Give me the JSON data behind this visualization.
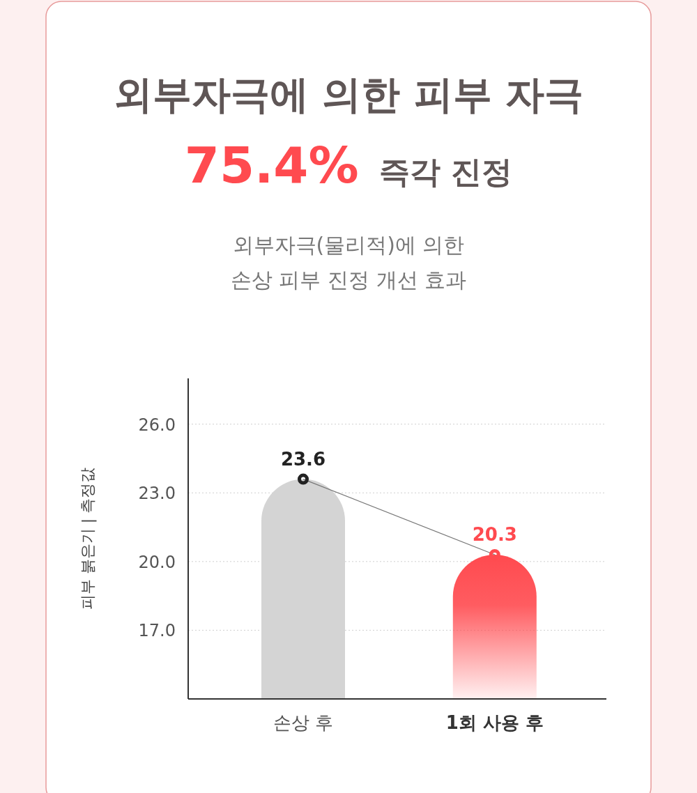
{
  "chart_data": {
    "type": "bar",
    "title": "외부자극에 의한 피부 자극",
    "subtitle": "75.4% 즉각 진정",
    "annotations": [
      "외부자극(물리적)에 의한",
      "손상 피부 진정 개선 효과"
    ],
    "ylabel": "피부 붉은기 | 측정값",
    "categories": [
      "손상 후",
      "1회 사용 후"
    ],
    "values": [
      23.6,
      20.3
    ],
    "colors": [
      "#d4d4d4",
      "#ff4a4f"
    ],
    "ylim": [
      14,
      28
    ],
    "yticks": [
      {
        "value": 17,
        "label": "17.0"
      },
      {
        "value": 20,
        "label": "20.0"
      },
      {
        "value": 23,
        "label": "23.0"
      },
      {
        "value": 26,
        "label": "26.0"
      }
    ],
    "grid": "y",
    "data_labels": true,
    "marker": "circle"
  }
}
